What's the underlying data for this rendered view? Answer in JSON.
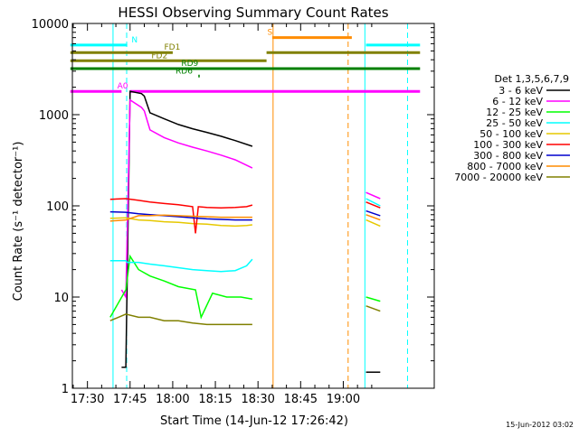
{
  "chart_data": {
    "type": "line",
    "title": "HESSI Observing Summary Count Rates",
    "xlabel": "Start Time (14-Jun-12 17:26:42)",
    "ylabel": "Count Rate (s⁻¹ detector⁻¹)",
    "y_scale": "log",
    "ylim": [
      1,
      10000
    ],
    "y_ticks": [
      1,
      10,
      100,
      1000,
      10000
    ],
    "y_tick_labels": [
      "1",
      "10",
      "100",
      "1000",
      "10000"
    ],
    "x_range_minutes": [
      1566,
      1157
    ],
    "x_ticks_minutes": [
      1050,
      1065,
      1080,
      1095,
      1110,
      1125,
      1140
    ],
    "x_tick_labels": [
      "17:30",
      "17:45",
      "18:00",
      "18:15",
      "18:30",
      "18:45",
      "19:00"
    ],
    "timestamp": "15-Jun-2012 03:02",
    "legend": {
      "title": "Det 1,3,5,6,7,9",
      "placement": "right"
    },
    "series": [
      {
        "name": "3 - 6 keV",
        "color": "#000000",
        "x": [
          1062,
          1063.5,
          1065,
          1069,
          1070,
          1072,
          1077,
          1082,
          1087,
          1092,
          1097,
          1102,
          1108
        ],
        "y": [
          1.7,
          1.7,
          1800,
          1700,
          1600,
          1050,
          900,
          780,
          700,
          640,
          580,
          520,
          450
        ]
      },
      {
        "name": "6 - 12 keV",
        "color": "#ff00ff",
        "x": [
          1062,
          1063.5,
          1065,
          1069,
          1070,
          1072,
          1077,
          1082,
          1087,
          1092,
          1097,
          1102,
          1108
        ],
        "y": [
          12,
          10,
          1450,
          1200,
          1100,
          680,
          560,
          490,
          440,
          400,
          360,
          320,
          260
        ]
      },
      {
        "name": "12 - 25 keV",
        "color": "#00ff00",
        "x": [
          1058,
          1063.5,
          1065,
          1068,
          1072,
          1077,
          1082,
          1088,
          1090,
          1094,
          1099,
          1104,
          1108
        ],
        "y": [
          6,
          12,
          28,
          20,
          17,
          15,
          13,
          12,
          6,
          11,
          10,
          10,
          9.5
        ]
      },
      {
        "name": "25 - 50 keV",
        "color": "#00ffff",
        "x": [
          1058,
          1063.5,
          1064,
          1068,
          1072,
          1077,
          1082,
          1087,
          1092,
          1097,
          1102,
          1106,
          1108
        ],
        "y": [
          25,
          25,
          24,
          24,
          23,
          22,
          21,
          20,
          19.5,
          19,
          19.5,
          22,
          26
        ]
      },
      {
        "name": "50 - 100 keV",
        "color": "#e6c800",
        "x": [
          1058,
          1063.5,
          1068,
          1072,
          1077,
          1082,
          1087,
          1092,
          1097,
          1102,
          1106,
          1108
        ],
        "y": [
          73,
          74,
          70,
          69,
          67,
          66,
          64,
          63,
          61,
          60,
          61,
          62
        ]
      },
      {
        "name": "100 - 300 keV",
        "color": "#ff0000",
        "x": [
          1058,
          1063.5,
          1068,
          1072,
          1077,
          1082,
          1087,
          1088,
          1089,
          1092,
          1097,
          1102,
          1106,
          1108
        ],
        "y": [
          118,
          120,
          115,
          110,
          106,
          103,
          98,
          50,
          98,
          96,
          95,
          96,
          98,
          102
        ]
      },
      {
        "name": "300 - 800 keV",
        "color": "#0000cd",
        "x": [
          1058,
          1063.5,
          1068,
          1072,
          1077,
          1082,
          1087,
          1092,
          1097,
          1102,
          1108
        ],
        "y": [
          86,
          85,
          82,
          80,
          78,
          76,
          74,
          72,
          71,
          70,
          70
        ]
      },
      {
        "name": "800 - 7000 keV",
        "color": "#ff8c00",
        "x": [
          1058,
          1063.5,
          1068,
          1072,
          1077,
          1082,
          1087,
          1092,
          1097,
          1102,
          1108
        ],
        "y": [
          68,
          70,
          78,
          78,
          79,
          78,
          77,
          76,
          75,
          75,
          75
        ]
      },
      {
        "name": "7000 - 20000 keV",
        "color": "#808000",
        "x": [
          1058,
          1063.5,
          1068,
          1072,
          1077,
          1082,
          1087,
          1092,
          1097,
          1102,
          1108
        ],
        "y": [
          5.5,
          6.5,
          6,
          6,
          5.5,
          5.5,
          5.2,
          5,
          5,
          5,
          5
        ]
      }
    ],
    "post_segment": [
      {
        "name": "3 - 6 keV",
        "x": [
          1148,
          1153
        ],
        "y": [
          1.5,
          1.5
        ]
      },
      {
        "name": "6 - 12 keV",
        "x": [
          1148,
          1153
        ],
        "y": [
          140,
          120
        ]
      },
      {
        "name": "12 - 25 keV",
        "x": [
          1148,
          1153
        ],
        "y": [
          10,
          9
        ]
      },
      {
        "name": "25 - 50 keV",
        "x": [
          1148,
          1153
        ],
        "y": [
          120,
          100
        ]
      },
      {
        "name": "50 - 100 keV",
        "x": [
          1148,
          1153
        ],
        "y": [
          70,
          60
        ]
      },
      {
        "name": "100 - 300 keV",
        "x": [
          1148,
          1153
        ],
        "y": [
          110,
          95
        ]
      },
      {
        "name": "300 - 800 keV",
        "x": [
          1148,
          1153
        ],
        "y": [
          88,
          78
        ]
      },
      {
        "name": "800 - 7000 keV",
        "x": [
          1148,
          1153
        ],
        "y": [
          80,
          70
        ]
      },
      {
        "name": "7000 - 20000 keV",
        "x": [
          1148,
          1153
        ],
        "y": [
          8,
          7
        ]
      }
    ],
    "flag_bars": [
      {
        "label": "N",
        "color": "#00ffff",
        "segments": [
          [
            1044,
            1064
          ],
          [
            1148,
            1167
          ]
        ],
        "y": 5800
      },
      {
        "label": "S",
        "color": "#ff8c00",
        "segments": [
          [
            1115,
            1143
          ]
        ],
        "y": 7000
      },
      {
        "label": "FD1",
        "color": "#808000",
        "segments": [
          [
            1044,
            1080
          ],
          [
            1113,
            1167
          ]
        ],
        "y": 4800
      },
      {
        "label": "FD2",
        "color": "#808000",
        "segments": [
          [
            1044,
            1113
          ]
        ],
        "y": 3900
      },
      {
        "label": "RD9",
        "color": "#008000",
        "segments": [
          [
            1044,
            1167
          ]
        ],
        "y": 3200
      },
      {
        "label": "RD6",
        "color": "#008000",
        "segments": [
          [
            1089,
            1089.5
          ]
        ],
        "y": 2650
      },
      {
        "label": "A0",
        "color": "#ff00ff",
        "segments": [
          [
            1044,
            1062
          ],
          [
            1065,
            1167
          ]
        ],
        "y": 1800
      }
    ],
    "vertical_markers": [
      {
        "x": 1063.8,
        "color": "#00ffff",
        "style": "dashed"
      },
      {
        "x": 1115.3,
        "color": "#ff8c00",
        "style": "solid"
      },
      {
        "x": 1141.7,
        "color": "#ff8c00",
        "style": "dashed"
      },
      {
        "x": 1162.6,
        "color": "#00ffff",
        "style": "dashed"
      },
      {
        "x": 1147.6,
        "color": "#00ffff",
        "style": "solid"
      },
      {
        "x": 1059.0,
        "color": "#00ffff",
        "style": "solid"
      }
    ]
  }
}
